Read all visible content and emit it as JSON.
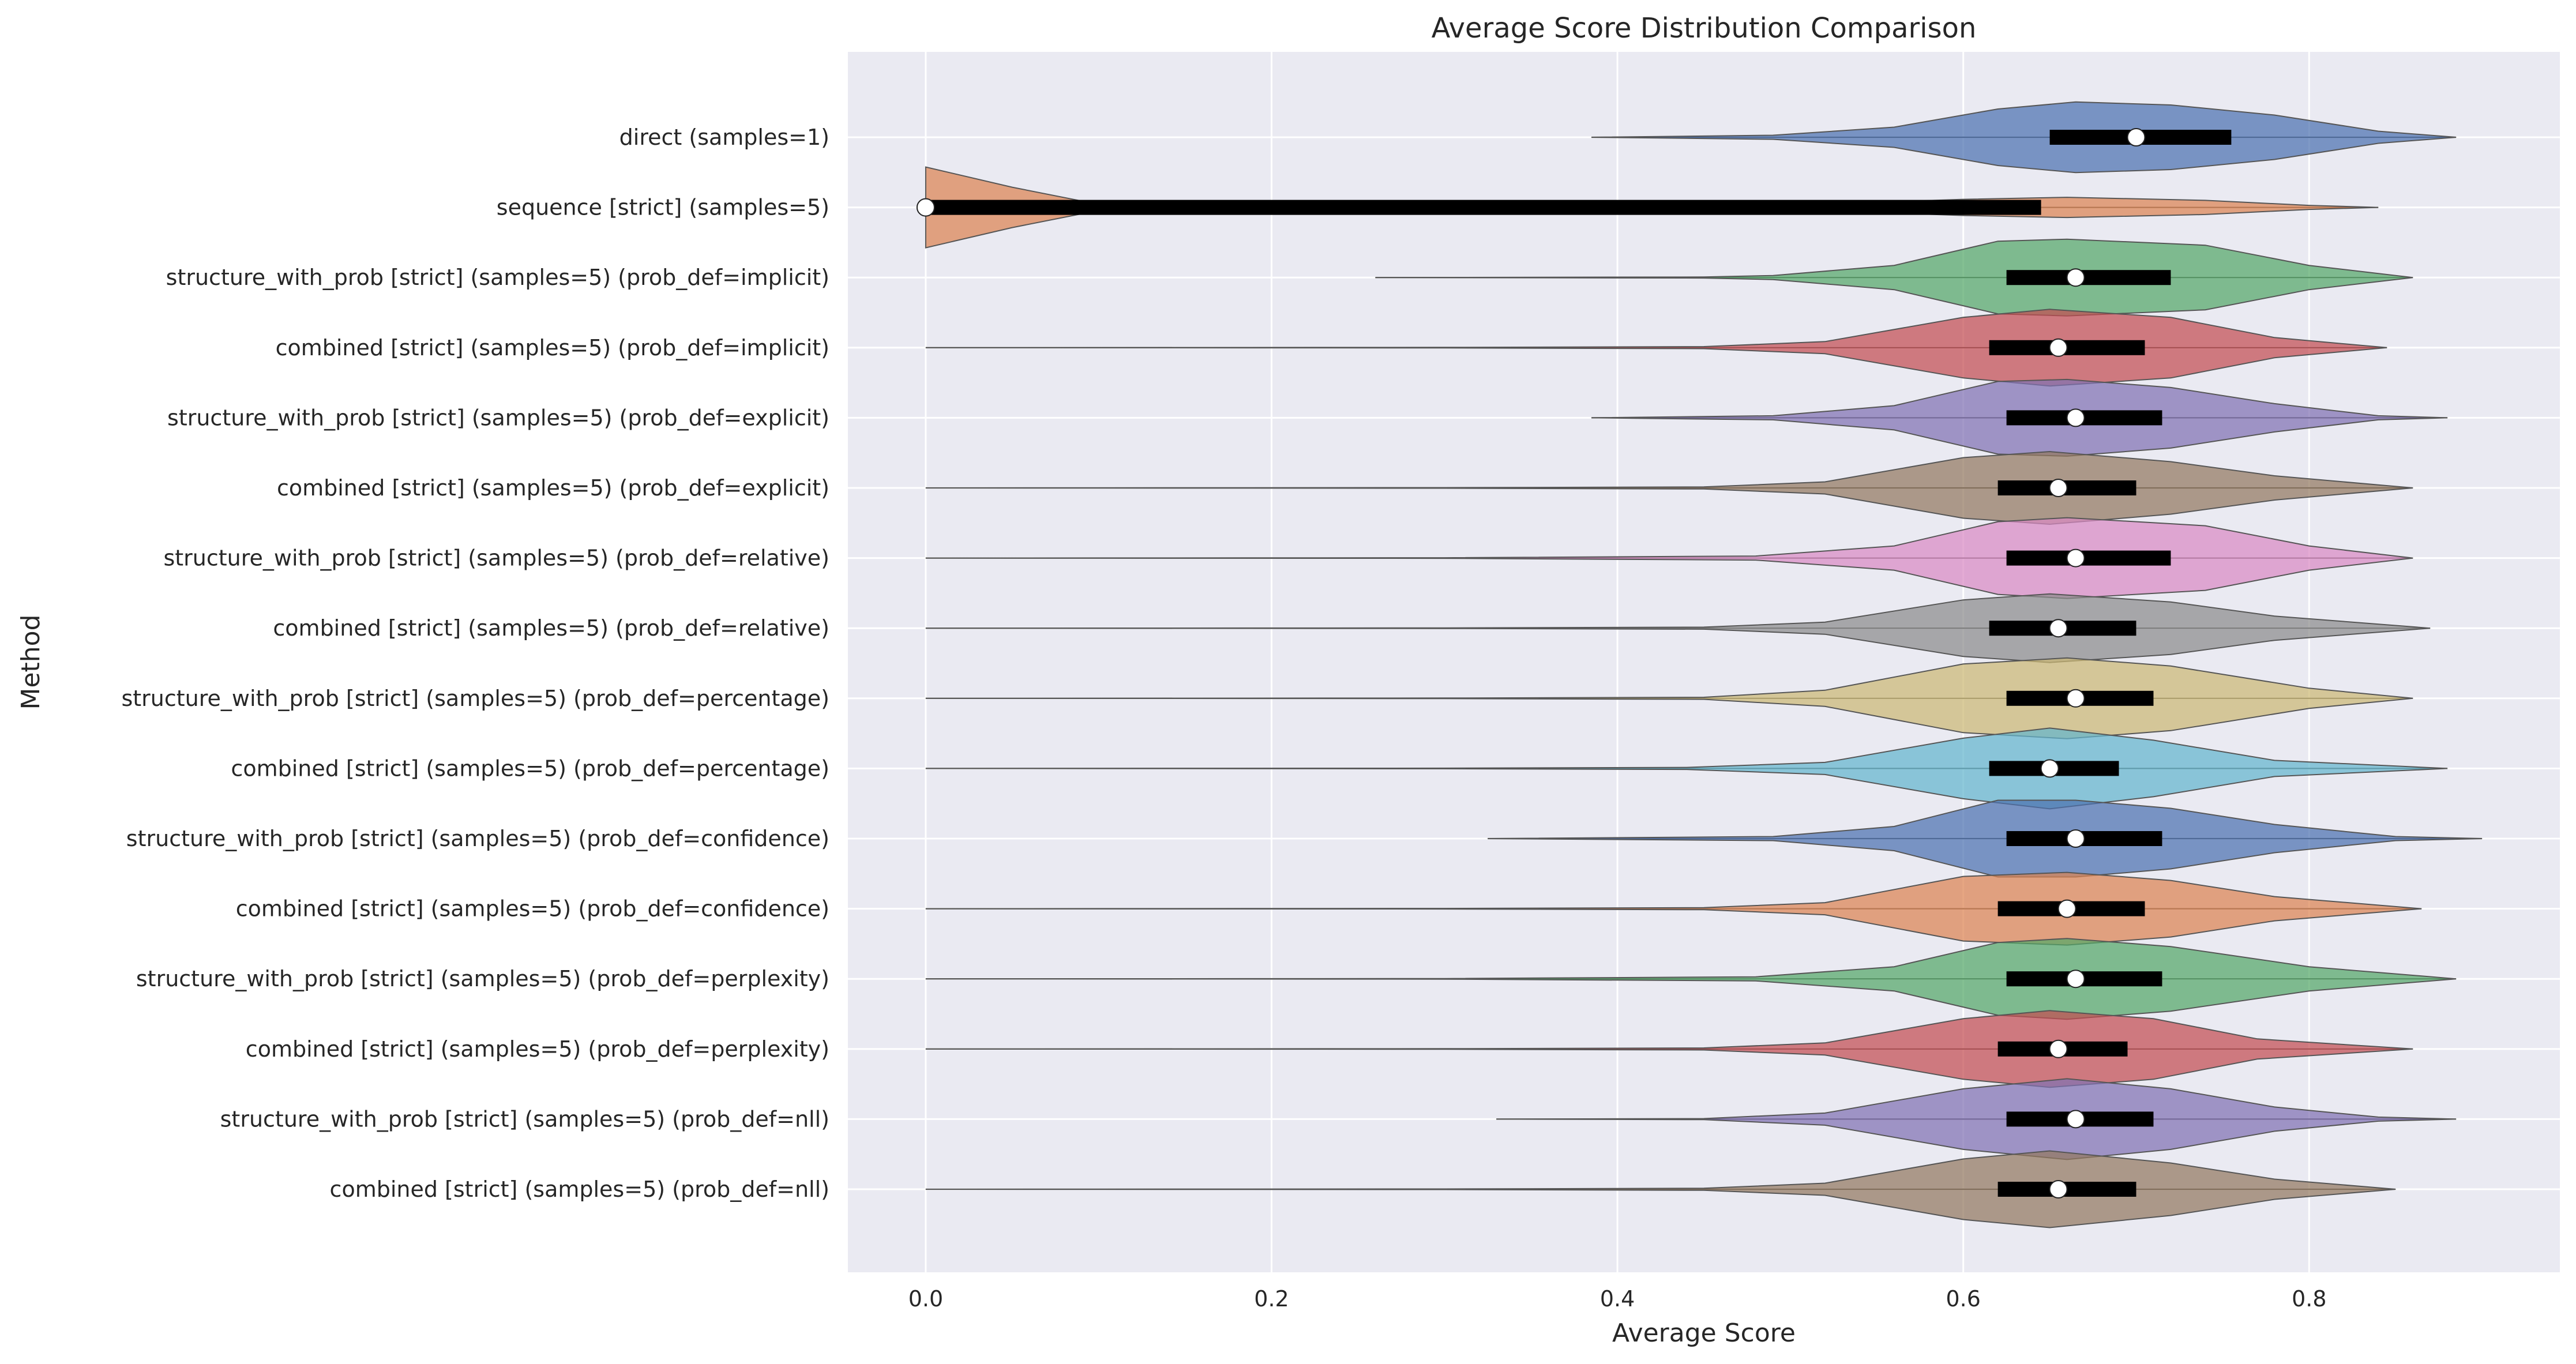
{
  "chart_data": {
    "type": "violin",
    "orientation": "horizontal",
    "title": "Average Score Distribution Comparison",
    "xlabel": "Average Score",
    "ylabel": "Method",
    "xlim": [
      -0.045,
      0.945
    ],
    "xticks": [
      0.0,
      0.2,
      0.4,
      0.6,
      0.8
    ],
    "xtick_labels": [
      "0.0",
      "0.2",
      "0.4",
      "0.6",
      "0.8"
    ],
    "grid": true,
    "background": "#eaeaf2",
    "categories": [
      "direct (samples=1)",
      "sequence [strict] (samples=5)",
      "structure_with_prob [strict] (samples=5) (prob_def=implicit)",
      "combined [strict] (samples=5) (prob_def=implicit)",
      "structure_with_prob [strict] (samples=5) (prob_def=explicit)",
      "combined [strict] (samples=5) (prob_def=explicit)",
      "structure_with_prob [strict] (samples=5) (prob_def=relative)",
      "combined [strict] (samples=5) (prob_def=relative)",
      "structure_with_prob [strict] (samples=5) (prob_def=percentage)",
      "combined [strict] (samples=5) (prob_def=percentage)",
      "structure_with_prob [strict] (samples=5) (prob_def=confidence)",
      "combined [strict] (samples=5) (prob_def=confidence)",
      "structure_with_prob [strict] (samples=5) (prob_def=perplexity)",
      "combined [strict] (samples=5) (prob_def=perplexity)",
      "structure_with_prob [strict] (samples=5) (prob_def=nll)",
      "combined [strict] (samples=5) (prob_def=nll)"
    ],
    "series": [
      {
        "color": "#4c72b0",
        "min": 0.385,
        "q1": 0.65,
        "median": 0.7,
        "q3": 0.755,
        "max": 0.885,
        "density": [
          [
            0.385,
            0
          ],
          [
            0.49,
            0.02
          ],
          [
            0.56,
            0.1
          ],
          [
            0.62,
            0.28
          ],
          [
            0.665,
            0.35
          ],
          [
            0.72,
            0.32
          ],
          [
            0.78,
            0.22
          ],
          [
            0.84,
            0.06
          ],
          [
            0.885,
            0
          ]
        ]
      },
      {
        "color": "#dd8452",
        "min": 0.0,
        "q1": 0.0,
        "median": 0.0,
        "q3": 0.645,
        "max": 0.84,
        "density": [
          [
            0.0,
            0.4
          ],
          [
            0.05,
            0.2
          ],
          [
            0.1,
            0.03
          ],
          [
            0.2,
            0.005
          ],
          [
            0.35,
            0.005
          ],
          [
            0.5,
            0.02
          ],
          [
            0.6,
            0.08
          ],
          [
            0.66,
            0.1
          ],
          [
            0.74,
            0.07
          ],
          [
            0.8,
            0.02
          ],
          [
            0.84,
            0
          ]
        ]
      },
      {
        "color": "#55a868",
        "min": 0.26,
        "q1": 0.625,
        "median": 0.665,
        "q3": 0.72,
        "max": 0.86,
        "density": [
          [
            0.26,
            0
          ],
          [
            0.45,
            0.005
          ],
          [
            0.49,
            0.02
          ],
          [
            0.56,
            0.12
          ],
          [
            0.62,
            0.36
          ],
          [
            0.66,
            0.38
          ],
          [
            0.74,
            0.32
          ],
          [
            0.8,
            0.12
          ],
          [
            0.86,
            0
          ]
        ]
      },
      {
        "color": "#c44e52",
        "min": 0.0,
        "q1": 0.615,
        "median": 0.655,
        "q3": 0.705,
        "max": 0.845,
        "density": [
          [
            0.0,
            0
          ],
          [
            0.3,
            0.003
          ],
          [
            0.45,
            0.01
          ],
          [
            0.52,
            0.06
          ],
          [
            0.6,
            0.3
          ],
          [
            0.65,
            0.38
          ],
          [
            0.72,
            0.3
          ],
          [
            0.78,
            0.1
          ],
          [
            0.845,
            0
          ]
        ]
      },
      {
        "color": "#8172b3",
        "min": 0.385,
        "q1": 0.625,
        "median": 0.665,
        "q3": 0.715,
        "max": 0.88,
        "density": [
          [
            0.385,
            0
          ],
          [
            0.49,
            0.02
          ],
          [
            0.56,
            0.12
          ],
          [
            0.62,
            0.36
          ],
          [
            0.66,
            0.38
          ],
          [
            0.72,
            0.3
          ],
          [
            0.78,
            0.14
          ],
          [
            0.84,
            0.02
          ],
          [
            0.88,
            0
          ]
        ]
      },
      {
        "color": "#937860",
        "min": 0.0,
        "q1": 0.62,
        "median": 0.655,
        "q3": 0.7,
        "max": 0.86,
        "density": [
          [
            0.0,
            0
          ],
          [
            0.3,
            0.003
          ],
          [
            0.45,
            0.01
          ],
          [
            0.52,
            0.06
          ],
          [
            0.6,
            0.3
          ],
          [
            0.65,
            0.36
          ],
          [
            0.72,
            0.26
          ],
          [
            0.78,
            0.12
          ],
          [
            0.86,
            0
          ]
        ]
      },
      {
        "color": "#da8bc3",
        "min": 0.0,
        "q1": 0.625,
        "median": 0.665,
        "q3": 0.72,
        "max": 0.86,
        "density": [
          [
            0.0,
            0
          ],
          [
            0.3,
            0.003
          ],
          [
            0.48,
            0.02
          ],
          [
            0.56,
            0.12
          ],
          [
            0.62,
            0.36
          ],
          [
            0.66,
            0.4
          ],
          [
            0.74,
            0.32
          ],
          [
            0.8,
            0.12
          ],
          [
            0.86,
            0
          ]
        ]
      },
      {
        "color": "#8c8c8c",
        "min": 0.0,
        "q1": 0.615,
        "median": 0.655,
        "q3": 0.7,
        "max": 0.87,
        "density": [
          [
            0.0,
            0
          ],
          [
            0.3,
            0.003
          ],
          [
            0.45,
            0.01
          ],
          [
            0.52,
            0.06
          ],
          [
            0.6,
            0.28
          ],
          [
            0.65,
            0.34
          ],
          [
            0.72,
            0.26
          ],
          [
            0.78,
            0.12
          ],
          [
            0.87,
            0
          ]
        ]
      },
      {
        "color": "#ccb974",
        "min": 0.0,
        "q1": 0.625,
        "median": 0.665,
        "q3": 0.71,
        "max": 0.86,
        "density": [
          [
            0.0,
            0
          ],
          [
            0.3,
            0.003
          ],
          [
            0.45,
            0.01
          ],
          [
            0.52,
            0.08
          ],
          [
            0.6,
            0.34
          ],
          [
            0.66,
            0.4
          ],
          [
            0.72,
            0.32
          ],
          [
            0.8,
            0.1
          ],
          [
            0.86,
            0
          ]
        ]
      },
      {
        "color": "#64b5cd",
        "min": 0.0,
        "q1": 0.615,
        "median": 0.65,
        "q3": 0.69,
        "max": 0.88,
        "density": [
          [
            0.0,
            0
          ],
          [
            0.3,
            0.003
          ],
          [
            0.44,
            0.01
          ],
          [
            0.52,
            0.06
          ],
          [
            0.6,
            0.3
          ],
          [
            0.65,
            0.4
          ],
          [
            0.71,
            0.28
          ],
          [
            0.78,
            0.08
          ],
          [
            0.88,
            0
          ]
        ]
      },
      {
        "color": "#4c72b0",
        "min": 0.325,
        "q1": 0.625,
        "median": 0.665,
        "q3": 0.715,
        "max": 0.9,
        "density": [
          [
            0.325,
            0
          ],
          [
            0.49,
            0.02
          ],
          [
            0.56,
            0.12
          ],
          [
            0.62,
            0.38
          ],
          [
            0.665,
            0.38
          ],
          [
            0.72,
            0.3
          ],
          [
            0.78,
            0.14
          ],
          [
            0.85,
            0.02
          ],
          [
            0.9,
            0
          ]
        ]
      },
      {
        "color": "#dd8452",
        "min": 0.0,
        "q1": 0.62,
        "median": 0.66,
        "q3": 0.705,
        "max": 0.865,
        "density": [
          [
            0.0,
            0
          ],
          [
            0.3,
            0.003
          ],
          [
            0.45,
            0.01
          ],
          [
            0.52,
            0.06
          ],
          [
            0.6,
            0.32
          ],
          [
            0.66,
            0.36
          ],
          [
            0.72,
            0.28
          ],
          [
            0.78,
            0.12
          ],
          [
            0.865,
            0
          ]
        ]
      },
      {
        "color": "#55a868",
        "min": 0.0,
        "q1": 0.625,
        "median": 0.665,
        "q3": 0.715,
        "max": 0.885,
        "density": [
          [
            0.0,
            0
          ],
          [
            0.3,
            0.003
          ],
          [
            0.48,
            0.02
          ],
          [
            0.56,
            0.12
          ],
          [
            0.62,
            0.36
          ],
          [
            0.66,
            0.4
          ],
          [
            0.72,
            0.32
          ],
          [
            0.8,
            0.12
          ],
          [
            0.885,
            0
          ]
        ]
      },
      {
        "color": "#c44e52",
        "min": 0.0,
        "q1": 0.62,
        "median": 0.655,
        "q3": 0.695,
        "max": 0.86,
        "density": [
          [
            0.0,
            0
          ],
          [
            0.3,
            0.003
          ],
          [
            0.45,
            0.01
          ],
          [
            0.52,
            0.06
          ],
          [
            0.6,
            0.3
          ],
          [
            0.65,
            0.38
          ],
          [
            0.71,
            0.3
          ],
          [
            0.77,
            0.1
          ],
          [
            0.86,
            0
          ]
        ]
      },
      {
        "color": "#8172b3",
        "min": 0.33,
        "q1": 0.625,
        "median": 0.665,
        "q3": 0.71,
        "max": 0.885,
        "density": [
          [
            0.33,
            0
          ],
          [
            0.45,
            0.005
          ],
          [
            0.52,
            0.06
          ],
          [
            0.6,
            0.3
          ],
          [
            0.66,
            0.4
          ],
          [
            0.72,
            0.3
          ],
          [
            0.78,
            0.12
          ],
          [
            0.84,
            0.02
          ],
          [
            0.885,
            0
          ]
        ]
      },
      {
        "color": "#937860",
        "min": 0.0,
        "q1": 0.62,
        "median": 0.655,
        "q3": 0.7,
        "max": 0.85,
        "density": [
          [
            0.0,
            0
          ],
          [
            0.3,
            0.003
          ],
          [
            0.45,
            0.01
          ],
          [
            0.52,
            0.06
          ],
          [
            0.6,
            0.3
          ],
          [
            0.65,
            0.38
          ],
          [
            0.72,
            0.26
          ],
          [
            0.78,
            0.1
          ],
          [
            0.85,
            0
          ]
        ]
      }
    ]
  }
}
